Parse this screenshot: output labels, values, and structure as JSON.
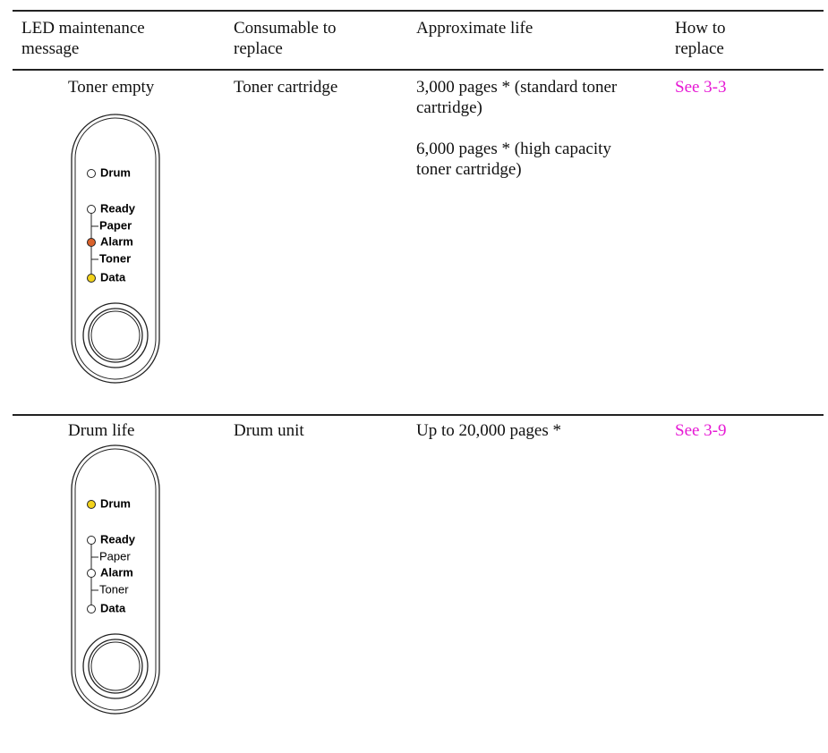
{
  "table": {
    "headers": [
      "LED maintenance message",
      "Consumable to replace",
      "Approximate life",
      "How to replace"
    ],
    "rows": [
      {
        "message": "Toner empty",
        "panel": [
          "Drum",
          "Ready",
          "Paper",
          "Alarm",
          "Toner",
          "Data"
        ],
        "consumable": "Toner cartridge",
        "life": [
          "3,000 pages * (standard toner cartridge)",
          "6,000 pages * (high capacity toner cartridge)"
        ],
        "link": "See 3-3"
      },
      {
        "message": "Drum life",
        "panel": [
          "Drum",
          "Ready",
          "Paper",
          "Alarm",
          "Toner",
          "Data"
        ],
        "consumable": "Drum unit",
        "life": [
          "Up to 20,000 pages *"
        ],
        "link": "See 3-9"
      }
    ]
  }
}
